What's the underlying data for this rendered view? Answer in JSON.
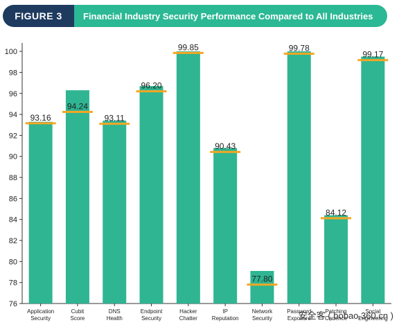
{
  "header": {
    "figure_label": "FIGURE 3",
    "title": "Financial Industry Security Performance Compared to All Industries"
  },
  "colors": {
    "bar": "#2fb592",
    "marker": "#f5a623",
    "banner_teal": "#2bb894",
    "banner_navy": "#1e3a5f",
    "axis": "#333333",
    "grid": "#dddddd"
  },
  "watermark": "安全客 ( bobao.360.cn )",
  "chart_data": {
    "type": "bar",
    "categories": [
      [
        "Application",
        "Security"
      ],
      [
        "Cubit",
        "Score"
      ],
      [
        "DNS",
        "Health"
      ],
      [
        "Endpoint",
        "Security"
      ],
      [
        "Hacker",
        "Chatter"
      ],
      [
        "IP",
        "Reputation"
      ],
      [
        "Network",
        "Security"
      ],
      [
        "Password",
        "Exposure"
      ],
      [
        "Patching",
        "Cadence"
      ],
      [
        "Social",
        "Engineering"
      ]
    ],
    "series": [
      {
        "values": [
          93.3,
          96.3,
          93.4,
          96.7,
          100.0,
          90.8,
          79.1,
          100.0,
          84.4,
          99.5
        ]
      },
      {
        "values": [
          93.16,
          94.24,
          93.11,
          96.2,
          99.85,
          90.43,
          77.8,
          99.78,
          84.12,
          99.17
        ]
      }
    ],
    "labels": [
      "93.16",
      "94.24",
      "93.11",
      "96.20",
      "99.85",
      "90.43",
      "77.80",
      "99.78",
      "84.12",
      "99.17"
    ],
    "y_ticks": [
      76,
      78,
      80,
      82,
      84,
      86,
      88,
      90,
      92,
      94,
      96,
      98,
      100
    ],
    "ylim": [
      76,
      100.8
    ],
    "grid": false,
    "xlabel": "",
    "ylabel": ""
  }
}
